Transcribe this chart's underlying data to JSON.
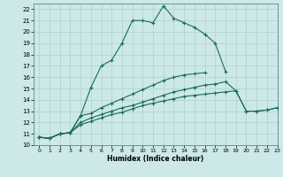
{
  "title": "",
  "xlabel": "Humidex (Indice chaleur)",
  "ylabel": "",
  "bg_color": "#cce8e8",
  "grid_color": "#b0d0d0",
  "line_color": "#1a6b5a",
  "xlim": [
    -0.5,
    23
  ],
  "ylim": [
    10,
    22.5
  ],
  "xticks": [
    0,
    1,
    2,
    3,
    4,
    5,
    6,
    7,
    8,
    9,
    10,
    11,
    12,
    13,
    14,
    15,
    16,
    17,
    18,
    19,
    20,
    21,
    22,
    23
  ],
  "yticks": [
    10,
    11,
    12,
    13,
    14,
    15,
    16,
    17,
    18,
    19,
    20,
    21,
    22
  ],
  "series": [
    {
      "x": [
        0,
        1,
        2,
        3,
        4,
        5,
        6,
        7,
        8,
        9,
        10,
        11,
        12,
        13,
        14,
        15,
        16,
        17,
        18
      ],
      "y": [
        10.7,
        10.6,
        11.0,
        11.1,
        12.6,
        15.1,
        17.0,
        17.5,
        19.0,
        21.0,
        21.0,
        20.8,
        22.3,
        21.2,
        20.8,
        20.4,
        19.8,
        19.0,
        16.5
      ]
    },
    {
      "x": [
        0,
        1,
        2,
        3,
        4,
        5,
        6,
        7,
        8,
        9,
        10,
        11,
        12,
        13,
        14,
        15,
        16
      ],
      "y": [
        10.7,
        10.6,
        11.0,
        11.1,
        12.6,
        12.8,
        13.3,
        13.7,
        14.1,
        14.5,
        14.9,
        15.3,
        15.7,
        16.0,
        16.2,
        16.3,
        16.4
      ]
    },
    {
      "x": [
        0,
        1,
        2,
        3,
        4,
        5,
        6,
        7,
        8,
        9,
        10,
        11,
        12,
        13,
        14,
        15,
        16,
        17,
        18,
        19,
        20,
        21,
        22,
        23
      ],
      "y": [
        10.7,
        10.6,
        11.0,
        11.1,
        12.0,
        12.4,
        12.7,
        13.0,
        13.3,
        13.5,
        13.8,
        14.1,
        14.4,
        14.7,
        14.9,
        15.1,
        15.3,
        15.4,
        15.6,
        14.8,
        13.0,
        13.0,
        13.1,
        13.3
      ]
    },
    {
      "x": [
        0,
        1,
        2,
        3,
        4,
        5,
        6,
        7,
        8,
        9,
        10,
        11,
        12,
        13,
        14,
        15,
        16,
        17,
        18,
        19,
        20,
        21,
        22,
        23
      ],
      "y": [
        10.7,
        10.6,
        11.0,
        11.1,
        11.8,
        12.1,
        12.4,
        12.7,
        12.9,
        13.2,
        13.5,
        13.7,
        13.9,
        14.1,
        14.3,
        14.4,
        14.5,
        14.6,
        14.7,
        14.8,
        13.0,
        13.0,
        13.1,
        13.3
      ]
    }
  ]
}
